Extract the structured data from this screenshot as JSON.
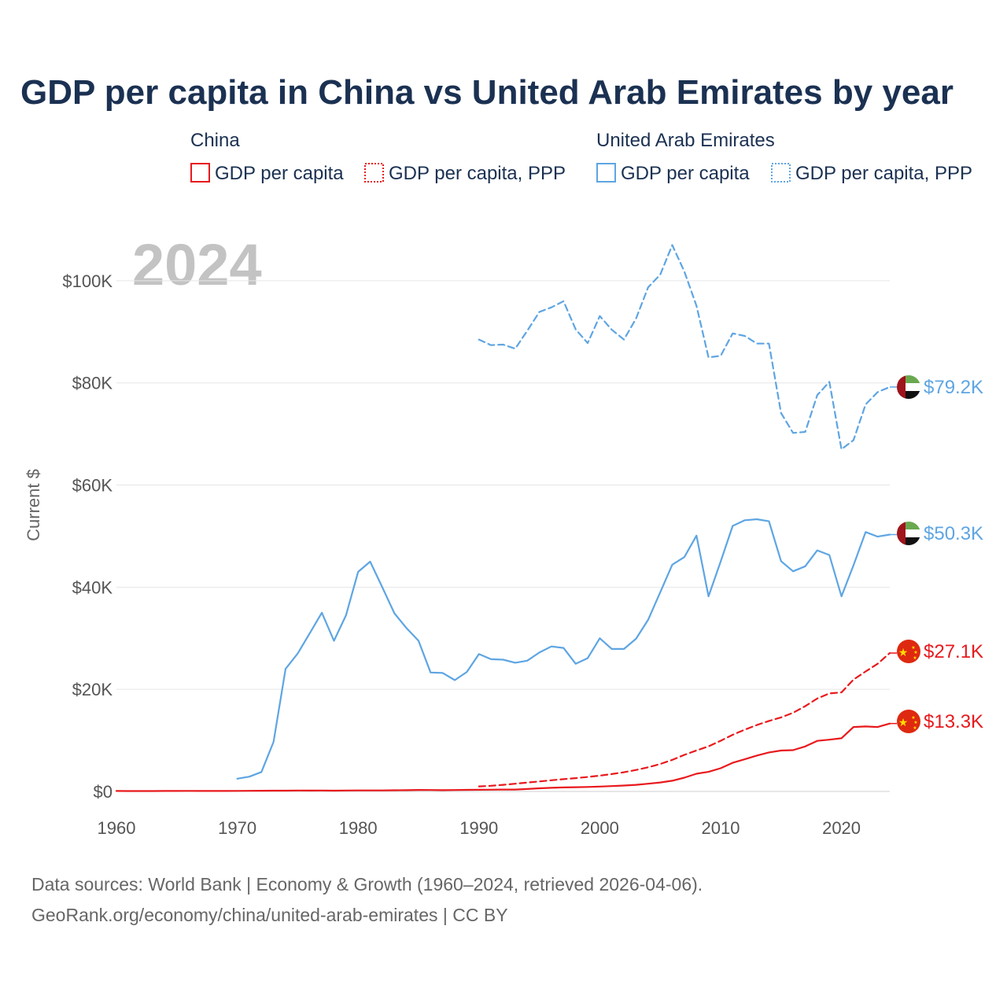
{
  "colors": {
    "china": "#e8191d",
    "uae": "#5ea5e3",
    "title": "#1b3152",
    "tick": "#555555",
    "grid": "#e6e6e6",
    "watermark": "#c3c3c3"
  },
  "chart_data": {
    "type": "line",
    "title": "GDP per capita in China vs United Arab Emirates by year",
    "ylabel": "Current $",
    "xlabel": "",
    "xlim": [
      1960,
      2024
    ],
    "ylim": [
      0,
      110000
    ],
    "x_ticks": [
      1960,
      1970,
      1980,
      1990,
      2000,
      2010,
      2020
    ],
    "x_tick_labels": [
      "1960",
      "1970",
      "1980",
      "1990",
      "2000",
      "2010",
      "2020"
    ],
    "y_ticks": [
      0,
      20000,
      40000,
      60000,
      80000,
      100000
    ],
    "y_tick_labels": [
      "$0",
      "$20K",
      "$40K",
      "$60K",
      "$80K",
      "$100K"
    ],
    "grid": true,
    "year_label": "2024",
    "legend": {
      "placement": "top",
      "groups": [
        {
          "name": "China",
          "entries": [
            "GDP per capita",
            "GDP per capita, PPP"
          ]
        },
        {
          "name": "United Arab Emirates",
          "entries": [
            "GDP per capita",
            "GDP per capita, PPP"
          ]
        }
      ]
    },
    "series": [
      {
        "name": "China GDP per capita",
        "country": "China",
        "style": "solid",
        "color": "#e8191d",
        "end_label": "$13.3K",
        "x": [
          1960,
          1961,
          1962,
          1963,
          1964,
          1965,
          1966,
          1967,
          1968,
          1969,
          1970,
          1971,
          1972,
          1973,
          1974,
          1975,
          1976,
          1977,
          1978,
          1979,
          1980,
          1981,
          1982,
          1983,
          1984,
          1985,
          1986,
          1987,
          1988,
          1989,
          1990,
          1991,
          1992,
          1993,
          1994,
          1995,
          1996,
          1997,
          1998,
          1999,
          2000,
          2001,
          2002,
          2003,
          2004,
          2005,
          2006,
          2007,
          2008,
          2009,
          2010,
          2011,
          2012,
          2013,
          2014,
          2015,
          2016,
          2017,
          2018,
          2019,
          2020,
          2021,
          2022,
          2023,
          2024
        ],
        "values": [
          90,
          76,
          71,
          74,
          85,
          98,
          104,
          97,
          91,
          100,
          113,
          119,
          132,
          157,
          160,
          178,
          165,
          185,
          156,
          183,
          195,
          197,
          203,
          225,
          251,
          294,
          282,
          251,
          283,
          311,
          318,
          333,
          367,
          377,
          473,
          610,
          709,
          782,
          829,
          873,
          959,
          1053,
          1149,
          1289,
          1509,
          1753,
          2099,
          2694,
          3468,
          3832,
          4550,
          5614,
          6301,
          7020,
          7636,
          8016,
          8094,
          8817,
          9905,
          10144,
          10409,
          12618,
          12720,
          12614,
          13300
        ]
      },
      {
        "name": "China GDP per capita, PPP",
        "country": "China",
        "style": "dashed",
        "color": "#e8191d",
        "end_label": "$27.1K",
        "x": [
          1990,
          1991,
          1992,
          1993,
          1994,
          1995,
          1996,
          1997,
          1998,
          1999,
          2000,
          2001,
          2002,
          2003,
          2004,
          2005,
          2006,
          2007,
          2008,
          2009,
          2010,
          2011,
          2012,
          2013,
          2014,
          2015,
          2016,
          2017,
          2018,
          2019,
          2020,
          2021,
          2022,
          2023,
          2024
        ],
        "values": [
          983,
          1110,
          1300,
          1510,
          1740,
          1960,
          2190,
          2410,
          2610,
          2840,
          3100,
          3400,
          3760,
          4200,
          4730,
          5380,
          6180,
          7160,
          8030,
          8830,
          9920,
          11100,
          12100,
          13000,
          13800,
          14500,
          15400,
          16700,
          18200,
          19200,
          19400,
          21900,
          23500,
          25000,
          27100
        ]
      },
      {
        "name": "United Arab Emirates GDP per capita",
        "country": "United Arab Emirates",
        "style": "solid",
        "color": "#5ea5e3",
        "end_label": "$50.3K",
        "x": [
          1970,
          1971,
          1972,
          1973,
          1974,
          1975,
          1976,
          1977,
          1978,
          1979,
          1980,
          1981,
          1982,
          1983,
          1984,
          1985,
          1986,
          1987,
          1988,
          1989,
          1990,
          1991,
          1992,
          1993,
          1994,
          1995,
          1996,
          1997,
          1998,
          1999,
          2000,
          2001,
          2002,
          2003,
          2004,
          2005,
          2006,
          2007,
          2008,
          2009,
          2010,
          2011,
          2012,
          2013,
          2014,
          2015,
          2016,
          2017,
          2018,
          2019,
          2020,
          2021,
          2022,
          2023,
          2024
        ],
        "values": [
          2500,
          2900,
          3800,
          9700,
          24000,
          27000,
          31000,
          35000,
          29500,
          34500,
          43000,
          45000,
          40000,
          34900,
          32000,
          29500,
          23300,
          23200,
          21800,
          23400,
          26900,
          25900,
          25800,
          25200,
          25600,
          27200,
          28400,
          28100,
          25000,
          26100,
          30000,
          27900,
          27900,
          29900,
          33600,
          39000,
          44400,
          45900,
          50100,
          38200,
          45000,
          52000,
          53100,
          53300,
          52900,
          45100,
          43100,
          44100,
          47200,
          46300,
          38200,
          44300,
          50800,
          49900,
          50300
        ]
      },
      {
        "name": "United Arab Emirates GDP per capita, PPP",
        "country": "United Arab Emirates",
        "style": "dashed",
        "color": "#5ea5e3",
        "end_label": "$79.2K",
        "x": [
          1990,
          1991,
          1992,
          1993,
          1994,
          1995,
          1996,
          1997,
          1998,
          1999,
          2000,
          2001,
          2002,
          2003,
          2004,
          2005,
          2006,
          2007,
          2008,
          2009,
          2010,
          2011,
          2012,
          2013,
          2014,
          2015,
          2016,
          2017,
          2018,
          2019,
          2020,
          2021,
          2022,
          2023,
          2024
        ],
        "values": [
          88500,
          87400,
          87500,
          86700,
          90200,
          93900,
          94800,
          96000,
          90500,
          87800,
          93100,
          90400,
          88500,
          92600,
          98700,
          101200,
          107000,
          101800,
          95100,
          85000,
          85300,
          89700,
          89200,
          87700,
          87700,
          74100,
          70200,
          70400,
          77600,
          80200,
          67000,
          68800,
          75800,
          78200,
          79200
        ]
      }
    ]
  },
  "source": {
    "line1": "Data sources: World Bank | Economy & Growth (1960–2024, retrieved 2026-04-06).",
    "line2": "GeoRank.org/economy/china/united-arab-emirates | CC BY"
  },
  "icons": {
    "china_flag": "china-flag-icon",
    "uae_flag": "uae-flag-icon"
  }
}
